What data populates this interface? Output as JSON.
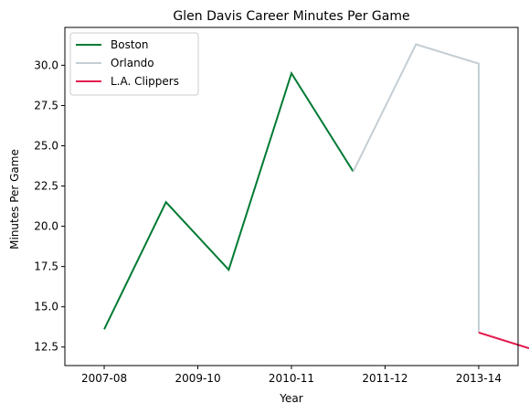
{
  "chart_data": {
    "type": "line",
    "title": "Glen Davis  Career Minutes Per Game",
    "xlabel": "Year",
    "ylabel": "Minutes Per Game",
    "x_tick_labels": [
      "2007-08",
      "2009-10",
      "2010-11",
      "2011-12",
      "2013-14"
    ],
    "x_tick_positions": [
      0,
      1,
      2,
      3,
      4
    ],
    "xlim": [
      -0.42,
      4.42
    ],
    "ylim": [
      11.35,
      32.35
    ],
    "y_ticks": [
      12.5,
      15.0,
      17.5,
      20.0,
      22.5,
      25.0,
      27.5,
      30.0
    ],
    "y_tick_labels": [
      "12.5",
      "15.0",
      "17.5",
      "20.0",
      "22.5",
      "25.0",
      "27.5",
      "30.0"
    ],
    "grid": false,
    "legend_position": "top-left",
    "series": [
      {
        "name": "Boston",
        "color": "#007A33",
        "x": [
          0,
          0.66,
          1.33,
          2,
          2.66
        ],
        "y": [
          13.6,
          21.5,
          17.3,
          29.5,
          23.4
        ]
      },
      {
        "name": "Orlando",
        "color": "#C4CED4",
        "x": [
          2.66,
          3.33,
          4,
          4
        ],
        "y": [
          23.4,
          31.3,
          30.1,
          13.4
        ]
      },
      {
        "name": "L.A. Clippers",
        "color": "#E31C4F",
        "x": [
          4,
          4.66
        ],
        "y": [
          13.4,
          12.2
        ]
      }
    ]
  }
}
